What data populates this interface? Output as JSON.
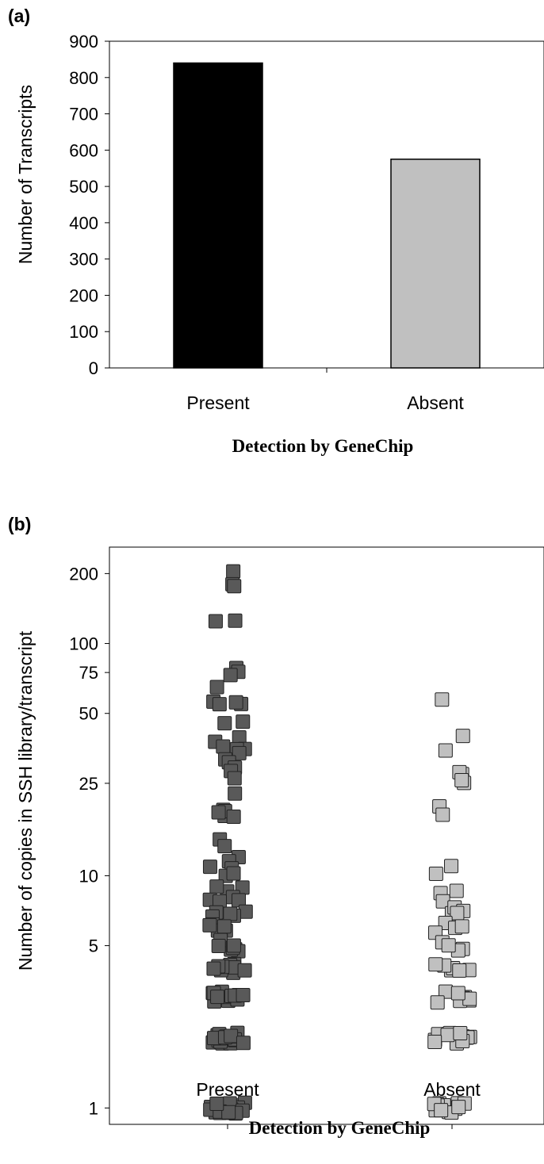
{
  "chart_data": [
    {
      "panel": "(a)",
      "type": "bar",
      "categories": [
        "Present",
        "Absent"
      ],
      "values": [
        840,
        575
      ],
      "colors": [
        "#000000",
        "#c0c0c0"
      ],
      "xlabel": "Detection by GeneChip",
      "ylabel": "Number of Transcripts",
      "ylim": [
        0,
        900
      ],
      "yticks": [
        0,
        100,
        200,
        300,
        400,
        500,
        600,
        700,
        800,
        900
      ],
      "grid": false,
      "legend": "none"
    },
    {
      "panel": "(b)",
      "type": "scatter",
      "yscale": "log",
      "categories": [
        "Present",
        "Absent"
      ],
      "xlabel": "Detection by GeneChip",
      "ylabel": "Number of copies in SSH library/transcript",
      "yticks": [
        1,
        5,
        10,
        25,
        50,
        75,
        100,
        200
      ],
      "ylim": [
        0.85,
        260
      ],
      "marker_colors": [
        "#595959",
        "#c0c0c0"
      ],
      "grid": false,
      "legend": "none",
      "series": [
        {
          "category": "Present",
          "y": [
            200,
            190,
            180,
            130,
            130,
            77,
            73,
            71,
            67,
            57,
            56,
            55,
            54,
            48,
            45,
            38,
            37,
            36,
            35,
            34,
            33,
            33,
            32,
            28,
            27,
            26,
            22,
            19,
            19,
            18,
            18,
            17,
            14,
            13,
            12,
            12,
            11,
            11,
            10,
            10,
            9,
            9,
            9,
            8,
            8,
            8,
            8,
            7,
            7,
            7,
            7,
            7,
            6,
            6,
            6,
            6,
            6,
            6,
            5,
            5,
            5,
            5,
            5,
            5,
            5,
            4,
            4,
            4,
            4,
            4,
            4,
            4,
            4,
            4,
            3,
            3,
            3,
            3,
            3,
            3,
            3,
            3,
            3,
            3,
            3,
            3,
            2,
            2,
            2,
            2,
            2,
            2,
            2,
            2,
            2,
            2,
            2,
            2,
            2,
            2,
            2,
            2,
            2,
            2,
            1,
            1,
            1,
            1,
            1,
            1,
            1,
            1,
            1,
            1,
            1,
            1,
            1,
            1,
            1,
            1,
            1,
            1,
            1,
            1
          ]
        },
        {
          "category": "Absent",
          "y": [
            60,
            39,
            36,
            28,
            27,
            26,
            25,
            19,
            18,
            11,
            10,
            9,
            8,
            8,
            7,
            7,
            7,
            7,
            6,
            6,
            6,
            6,
            5,
            5,
            5,
            5,
            4,
            4,
            4,
            4,
            4,
            4,
            3,
            3,
            3,
            3,
            3,
            3,
            3,
            3,
            2,
            2,
            2,
            2,
            2,
            2,
            2,
            2,
            2,
            2,
            2,
            2,
            2,
            1,
            1,
            1,
            1,
            1,
            1,
            1,
            1,
            1,
            1,
            1,
            1,
            1,
            1
          ]
        }
      ]
    }
  ]
}
